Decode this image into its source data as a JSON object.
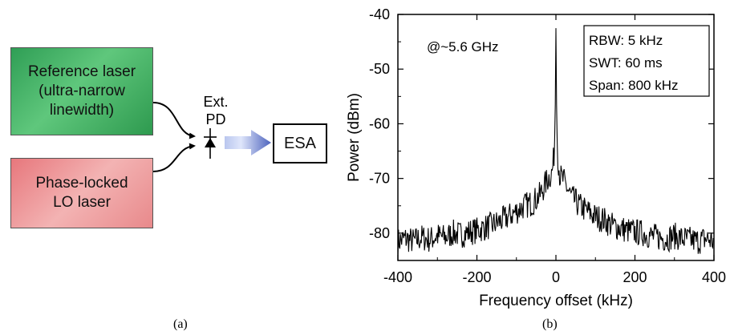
{
  "diagram": {
    "reference_laser": [
      "Reference laser",
      "(ultra-narrow",
      "linewidth)"
    ],
    "lo_laser": [
      "Phase-locked",
      "LO laser"
    ],
    "pd_label": [
      "Ext.",
      "PD"
    ],
    "esa_label": "ESA",
    "colors": {
      "reference": "#3fae63",
      "lo": "#ee9b9c",
      "arrow": "#5f76c8"
    }
  },
  "captions": {
    "a": "(a)",
    "b": "(b)"
  },
  "chart_data": {
    "type": "line",
    "title": "",
    "xlabel": "Frequency offset (kHz)",
    "ylabel": "Power (dBm)",
    "xlim": [
      -400,
      400
    ],
    "ylim": [
      -85,
      -40
    ],
    "xticks": [
      -400,
      -200,
      0,
      200,
      400
    ],
    "yticks": [
      -40,
      -50,
      -60,
      -70,
      -80
    ],
    "x_tick_labels": [
      "-400",
      "-200",
      "0",
      "200",
      "400"
    ],
    "y_tick_labels": [
      "-40",
      "-50",
      "-60",
      "-70",
      "-80"
    ],
    "grid": false,
    "annotation": "@~5.6 GHz",
    "info_box": [
      "RBW: 5 kHz",
      "SWT: 60 ms",
      "Span: 800 kHz"
    ],
    "series": [
      {
        "color": "#000000",
        "x": [
          -400,
          -380,
          -360,
          -340,
          -320,
          -300,
          -280,
          -260,
          -240,
          -220,
          -200,
          -180,
          -160,
          -140,
          -120,
          -100,
          -80,
          -60,
          -40,
          -20,
          -10,
          -5,
          -2,
          0,
          2,
          5,
          10,
          20,
          40,
          60,
          80,
          100,
          120,
          140,
          160,
          180,
          200,
          220,
          240,
          260,
          280,
          300,
          320,
          340,
          360,
          380,
          400
        ],
        "y": [
          -81.5,
          -81.0,
          -81.5,
          -80.8,
          -81.2,
          -80.5,
          -80.8,
          -80.0,
          -80.3,
          -79.8,
          -79.5,
          -79.0,
          -78.5,
          -77.8,
          -77.0,
          -76.0,
          -75.0,
          -74.5,
          -73.0,
          -70.0,
          -69.0,
          -66.0,
          -60.0,
          -42.5,
          -60.0,
          -66.0,
          -69.5,
          -70.5,
          -73.5,
          -75.0,
          -76.0,
          -77.0,
          -77.5,
          -78.5,
          -79.0,
          -79.5,
          -79.8,
          -80.0,
          -80.5,
          -80.8,
          -81.0,
          -80.5,
          -81.0,
          -81.2,
          -81.5,
          -81.0,
          -81.5
        ]
      }
    ]
  }
}
